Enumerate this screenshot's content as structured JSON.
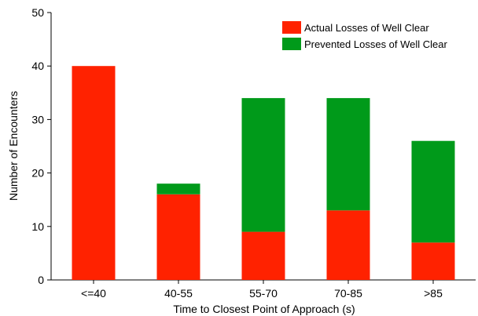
{
  "chart_data": {
    "type": "bar",
    "stacked": true,
    "categories": [
      "<=40",
      "40-55",
      "55-70",
      "70-85",
      ">85"
    ],
    "series": [
      {
        "name": "Actual Losses of Well Clear",
        "values": [
          40,
          16,
          9,
          13,
          7
        ],
        "color": "#ff2200"
      },
      {
        "name": "Prevented Losses of Well Clear",
        "values": [
          0,
          2,
          25,
          21,
          19
        ],
        "color": "#009a1a"
      }
    ],
    "xlabel": "Time to Closest Point of Approach (s)",
    "ylabel": "Number of Encounters",
    "ylim": [
      0,
      50
    ],
    "yticks": [
      0,
      10,
      20,
      30,
      40,
      50
    ],
    "grid": false,
    "legend_position": "top-right"
  }
}
